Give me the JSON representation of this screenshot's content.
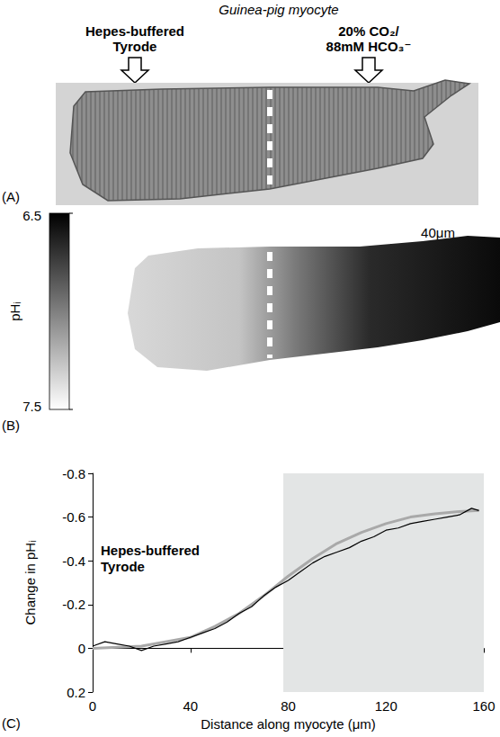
{
  "figure": {
    "panel_a": {
      "letter": "(A)",
      "title": "Guinea-pig myocyte",
      "left_label": [
        "Hepes-buffered",
        "Tyrode"
      ],
      "right_label": [
        "20% CO₂/",
        "88mM HCO₃⁻"
      ]
    },
    "panel_b": {
      "letter": "(B)",
      "scale_bar": "40μm",
      "colorbar": {
        "label": "pHᵢ",
        "range": [
          6.5,
          7.5
        ],
        "ticks": [
          6.5,
          7.5
        ]
      }
    }
  },
  "chart_data": {
    "type": "line",
    "letter": "(C)",
    "x_label": "Distance along myocyte (μm)",
    "y_label": "Change in pHᵢ",
    "xlim": [
      0,
      160
    ],
    "xticks": [
      0,
      40,
      80,
      120,
      160
    ],
    "ylim": [
      0.2,
      -0.8
    ],
    "yticks": [
      0.2,
      0,
      -0.2,
      -0.4,
      -0.6,
      -0.8
    ],
    "grid": false,
    "annotations": [
      {
        "text": [
          "Hepes-buffered",
          "Tyrode"
        ]
      }
    ],
    "shaded_region": {
      "x": [
        78,
        160
      ],
      "label": [
        "20% CO₂/",
        "88mM HCO₃⁻"
      ]
    },
    "series": [
      {
        "color": "#a9a9a9",
        "line_style": "solid",
        "x": [
          0,
          20,
          40,
          50,
          60,
          70,
          80,
          90,
          100,
          110,
          120,
          130,
          140,
          150,
          158
        ],
        "values": [
          0,
          -0.01,
          -0.05,
          -0.1,
          -0.16,
          -0.24,
          -0.33,
          -0.41,
          -0.48,
          -0.53,
          -0.57,
          -0.6,
          -0.615,
          -0.625,
          -0.63
        ]
      },
      {
        "color": "#000000",
        "line_style": "solid",
        "x": [
          0,
          5,
          10,
          15,
          20,
          25,
          30,
          35,
          40,
          45,
          50,
          55,
          60,
          65,
          70,
          75,
          80,
          85,
          90,
          95,
          100,
          105,
          110,
          115,
          120,
          125,
          130,
          135,
          140,
          145,
          150,
          155,
          158
        ],
        "values": [
          -0.01,
          -0.03,
          -0.02,
          -0.01,
          0.01,
          -0.01,
          -0.02,
          -0.03,
          -0.05,
          -0.07,
          -0.09,
          -0.12,
          -0.16,
          -0.19,
          -0.24,
          -0.28,
          -0.31,
          -0.35,
          -0.39,
          -0.42,
          -0.44,
          -0.46,
          -0.49,
          -0.51,
          -0.54,
          -0.55,
          -0.57,
          -0.58,
          -0.59,
          -0.6,
          -0.61,
          -0.64,
          -0.63
        ]
      }
    ]
  }
}
